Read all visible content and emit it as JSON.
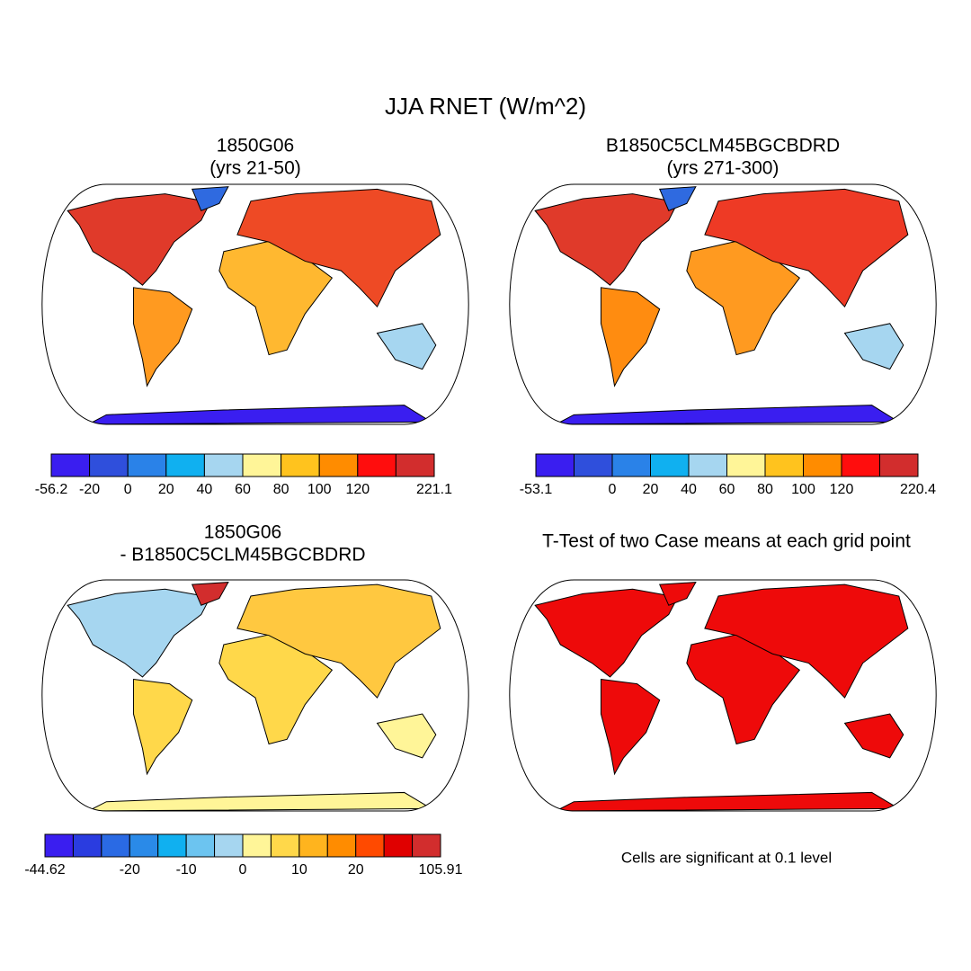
{
  "title": "JJA RNET (W/m^2)",
  "panels": [
    {
      "title_lines": [
        "1850G06",
        "(yrs 21-50)"
      ],
      "colorbar": {
        "colors": [
          "#3a1ef0",
          "#2f4fdc",
          "#2a82e8",
          "#10b0f0",
          "#a6d6f0",
          "#fff598",
          "#ffc31e",
          "#ff8c00",
          "#ff0d0d",
          "#d22d2d"
        ],
        "labels": [
          "-56.2",
          "-20",
          "0",
          "20",
          "40",
          "60",
          "80",
          "100",
          "120",
          null,
          "221.1"
        ]
      }
    },
    {
      "title_lines": [
        "B1850C5CLM45BGCBDRD",
        "(yrs 271-300)"
      ],
      "colorbar": {
        "colors": [
          "#3a1ef0",
          "#2f4fdc",
          "#2a82e8",
          "#10b0f0",
          "#a6d6f0",
          "#fff598",
          "#ffc31e",
          "#ff8c00",
          "#ff0d0d",
          "#d22d2d"
        ],
        "labels": [
          "-53.1",
          null,
          "0",
          "20",
          "40",
          "60",
          "80",
          "100",
          "120",
          null,
          "220.4"
        ]
      }
    },
    {
      "title_lines": [
        "1850G06",
        "- B1850C5CLM45BGCBDRD"
      ],
      "colorbar": {
        "colors": [
          "#3a1ef0",
          "#2a3ce0",
          "#2a6ae4",
          "#2a8ae8",
          "#10b0f0",
          "#6cc4f0",
          "#a6d6f0",
          "#fff598",
          "#ffd84a",
          "#ffb41e",
          "#ff8c00",
          "#ff4a00",
          "#e00000",
          "#d22d2d"
        ],
        "labels": [
          "-44.62",
          null,
          null,
          "-20",
          null,
          "-10",
          null,
          "0",
          null,
          "10",
          null,
          "20",
          null,
          null,
          "105.91"
        ]
      }
    },
    {
      "title_lines": [
        "T-Test of two Case means at each grid point"
      ],
      "note": "Cells are significant at 0.1 level"
    }
  ]
}
